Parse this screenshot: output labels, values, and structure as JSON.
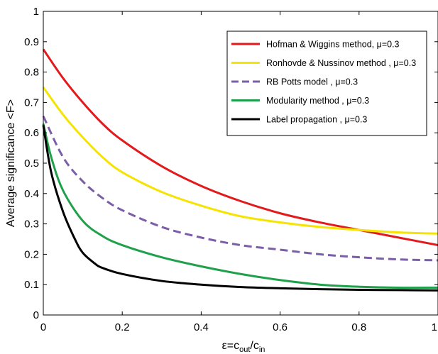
{
  "chart_data": {
    "type": "line",
    "title": "",
    "xlabel": "ε=c",
    "xlabel_sub1": "out",
    "xlabel_mid": "/c",
    "xlabel_sub2": "in",
    "ylabel": "Average significance <F>",
    "xlim": [
      0,
      1
    ],
    "ylim": [
      0,
      1
    ],
    "x_ticks": [
      0,
      0.2,
      0.4,
      0.6,
      0.8,
      1
    ],
    "x_tick_labels": [
      "0",
      "0.2",
      "0.4",
      "0.6",
      "0.8",
      "1"
    ],
    "y_ticks": [
      0,
      0.1,
      0.2,
      0.3,
      0.4,
      0.5,
      0.6,
      0.7,
      0.8,
      0.9,
      1
    ],
    "y_tick_labels": [
      "0",
      "0.1",
      "0.2",
      "0.3",
      "0.4",
      "0.5",
      "0.6",
      "0.7",
      "0.8",
      "0.9",
      "1"
    ],
    "grid": false,
    "legend_position": "top-right",
    "series": [
      {
        "name": "Hofman & Wiggins method, μ=0.3",
        "color": "#e31a1c",
        "dash": "solid",
        "x": [
          0,
          0.05,
          0.1,
          0.15,
          0.2,
          0.3,
          0.4,
          0.5,
          0.6,
          0.7,
          0.8,
          0.9,
          1.0
        ],
        "y": [
          0.875,
          0.78,
          0.7,
          0.63,
          0.575,
          0.49,
          0.425,
          0.375,
          0.335,
          0.305,
          0.28,
          0.255,
          0.23
        ]
      },
      {
        "name": "Ronhovde & Nussinov method , μ=0.3",
        "color": "#f5e400",
        "dash": "solid",
        "x": [
          0,
          0.05,
          0.1,
          0.15,
          0.2,
          0.3,
          0.4,
          0.5,
          0.6,
          0.7,
          0.8,
          0.9,
          1.0
        ],
        "y": [
          0.75,
          0.66,
          0.585,
          0.52,
          0.47,
          0.405,
          0.36,
          0.325,
          0.305,
          0.29,
          0.28,
          0.272,
          0.268
        ]
      },
      {
        "name": "RB Potts model , μ=0.3",
        "color": "#7b5ea8",
        "dash": "dashed",
        "x": [
          0,
          0.05,
          0.1,
          0.15,
          0.2,
          0.3,
          0.4,
          0.5,
          0.6,
          0.7,
          0.8,
          0.9,
          1.0
        ],
        "y": [
          0.655,
          0.52,
          0.44,
          0.385,
          0.345,
          0.29,
          0.255,
          0.23,
          0.215,
          0.2,
          0.19,
          0.183,
          0.18
        ]
      },
      {
        "name": "Modularity method , μ=0.3",
        "color": "#1fa04a",
        "dash": "solid",
        "x": [
          0,
          0.02,
          0.05,
          0.1,
          0.15,
          0.2,
          0.3,
          0.4,
          0.5,
          0.6,
          0.7,
          0.8,
          0.9,
          1.0
        ],
        "y": [
          0.63,
          0.52,
          0.41,
          0.31,
          0.26,
          0.23,
          0.19,
          0.16,
          0.135,
          0.115,
          0.1,
          0.093,
          0.09,
          0.09
        ]
      },
      {
        "name": "Label propagation , μ=0.3",
        "color": "#000000",
        "dash": "solid",
        "x": [
          0,
          0.02,
          0.05,
          0.08,
          0.1,
          0.13,
          0.15,
          0.2,
          0.3,
          0.4,
          0.5,
          0.6,
          0.7,
          0.8,
          0.9,
          1.0
        ],
        "y": [
          0.625,
          0.47,
          0.34,
          0.25,
          0.205,
          0.17,
          0.155,
          0.135,
          0.112,
          0.1,
          0.092,
          0.088,
          0.085,
          0.083,
          0.082,
          0.081
        ]
      }
    ]
  }
}
